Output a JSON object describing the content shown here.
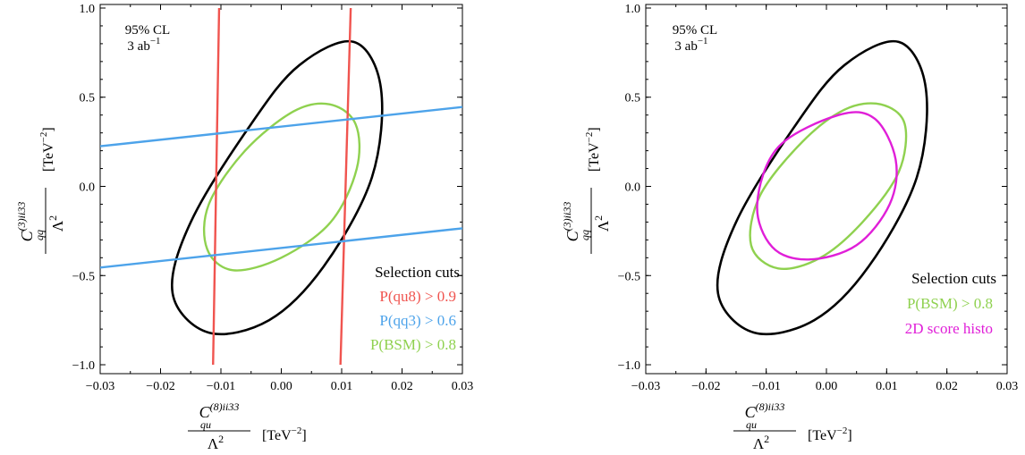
{
  "chart_data": [
    {
      "type": "line",
      "annotation": {
        "line1": "95% CL",
        "line2_base": "3 ab",
        "line2_sup": "−1"
      },
      "xlabel": {
        "num_base": "C",
        "num_sup": "(8)ii33",
        "num_sub": "qu",
        "den": "Λ",
        "den_sup": "2",
        "unit": "[TeV",
        "unit_sup": "−2",
        "unit_close": "]"
      },
      "ylabel": {
        "num_base": "C",
        "num_sup": "(3)ii33",
        "num_sub": "qq",
        "den": "Λ",
        "den_sup": "2",
        "unit": "[TeV",
        "unit_sup": "−2",
        "unit_close": "]"
      },
      "xlim": [
        -0.03,
        0.03
      ],
      "ylim": [
        -1.05,
        1.02
      ],
      "xticks": [
        "−0.03",
        "−0.02",
        "−0.01",
        "0.00",
        "0.01",
        "0.02",
        "0.03"
      ],
      "yticks": [
        "−1.0",
        "−0.5",
        "0.0",
        "0.5",
        "1.0"
      ],
      "legend": {
        "title": "Selection cuts",
        "entries": [
          {
            "label": "P(qu8) > 0.9",
            "color": "#f0544f"
          },
          {
            "label": "P(qq3) > 0.6",
            "color": "#4da3ea"
          },
          {
            "label": "P(BSM) > 0.8",
            "color": "#8fd14f"
          }
        ]
      },
      "series": [
        {
          "kind": "ellipse",
          "color": "#000000",
          "points": [
            [
              -0.012,
              -0.82
            ],
            [
              -0.018,
              -0.6
            ],
            [
              -0.015,
              -0.2
            ],
            [
              -0.005,
              0.35
            ],
            [
              0.003,
              0.68
            ],
            [
              0.012,
              0.81
            ],
            [
              0.0165,
              0.55
            ],
            [
              0.015,
              0.05
            ],
            [
              0.007,
              -0.45
            ],
            [
              -0.002,
              -0.75
            ],
            [
              -0.012,
              -0.82
            ]
          ]
        },
        {
          "kind": "ellipse",
          "color": "#8fd14f",
          "points": [
            [
              -0.008,
              -0.47
            ],
            [
              -0.0123,
              -0.35
            ],
            [
              -0.012,
              -0.1
            ],
            [
              -0.006,
              0.2
            ],
            [
              0.002,
              0.42
            ],
            [
              0.008,
              0.46
            ],
            [
              0.0123,
              0.35
            ],
            [
              0.0125,
              0.1
            ],
            [
              0.0082,
              -0.2
            ],
            [
              0.0,
              -0.4
            ],
            [
              -0.008,
              -0.47
            ]
          ]
        },
        {
          "kind": "line",
          "color": "#f0544f",
          "points": [
            [
              -0.0113,
              -1.0
            ],
            [
              -0.0103,
              1.0
            ]
          ]
        },
        {
          "kind": "line",
          "color": "#f0544f",
          "points": [
            [
              0.0098,
              -1.0
            ],
            [
              0.0115,
              1.0
            ]
          ]
        },
        {
          "kind": "line",
          "color": "#4da3ea",
          "points": [
            [
              -0.03,
              0.225
            ],
            [
              0.03,
              0.445
            ]
          ]
        },
        {
          "kind": "line",
          "color": "#4da3ea",
          "points": [
            [
              -0.03,
              -0.455
            ],
            [
              0.03,
              -0.235
            ]
          ]
        }
      ]
    },
    {
      "type": "line",
      "annotation": {
        "line1": "95% CL",
        "line2_base": "3 ab",
        "line2_sup": "−1"
      },
      "xlabel": {
        "num_base": "C",
        "num_sup": "(8)ii33",
        "num_sub": "qu",
        "den": "Λ",
        "den_sup": "2",
        "unit": "[TeV",
        "unit_sup": "−2",
        "unit_close": "]"
      },
      "ylabel": {
        "num_base": "C",
        "num_sup": "(3)ii33",
        "num_sub": "qq",
        "den": "Λ",
        "den_sup": "2",
        "unit": "[TeV",
        "unit_sup": "−2",
        "unit_close": "]"
      },
      "xlim": [
        -0.03,
        0.03
      ],
      "ylim": [
        -1.05,
        1.02
      ],
      "xticks": [
        "−0.03",
        "−0.02",
        "−0.01",
        "0.00",
        "0.01",
        "0.02",
        "0.03"
      ],
      "yticks": [
        "−1.0",
        "−0.5",
        "0.0",
        "0.5",
        "1.0"
      ],
      "legend": {
        "title": "Selection cuts",
        "entries": [
          {
            "label": "P(BSM) > 0.8",
            "color": "#8fd14f"
          },
          {
            "label": "2D score histo",
            "color": "#e01fd8"
          }
        ]
      },
      "series": [
        {
          "kind": "ellipse",
          "color": "#000000",
          "points": [
            [
              -0.012,
              -0.82
            ],
            [
              -0.018,
              -0.6
            ],
            [
              -0.015,
              -0.2
            ],
            [
              -0.005,
              0.35
            ],
            [
              0.003,
              0.68
            ],
            [
              0.012,
              0.81
            ],
            [
              0.0165,
              0.55
            ],
            [
              0.015,
              0.05
            ],
            [
              0.007,
              -0.45
            ],
            [
              -0.002,
              -0.75
            ],
            [
              -0.012,
              -0.82
            ]
          ]
        },
        {
          "kind": "ellipse",
          "color": "#8fd14f",
          "points": [
            [
              -0.008,
              -0.46
            ],
            [
              -0.0125,
              -0.33
            ],
            [
              -0.011,
              -0.05
            ],
            [
              -0.004,
              0.25
            ],
            [
              0.003,
              0.43
            ],
            [
              0.009,
              0.46
            ],
            [
              0.013,
              0.35
            ],
            [
              0.012,
              0.08
            ],
            [
              0.006,
              -0.2
            ],
            [
              -0.001,
              -0.4
            ],
            [
              -0.008,
              -0.46
            ]
          ]
        },
        {
          "kind": "ellipse",
          "color": "#e01fd8",
          "points": [
            [
              -0.003,
              -0.41
            ],
            [
              -0.009,
              -0.34
            ],
            [
              -0.0115,
              -0.1
            ],
            [
              -0.008,
              0.22
            ],
            [
              0.002,
              0.4
            ],
            [
              0.008,
              0.38
            ],
            [
              0.0115,
              0.15
            ],
            [
              0.0105,
              -0.1
            ],
            [
              0.005,
              -0.33
            ],
            [
              -0.003,
              -0.41
            ]
          ]
        }
      ]
    }
  ]
}
